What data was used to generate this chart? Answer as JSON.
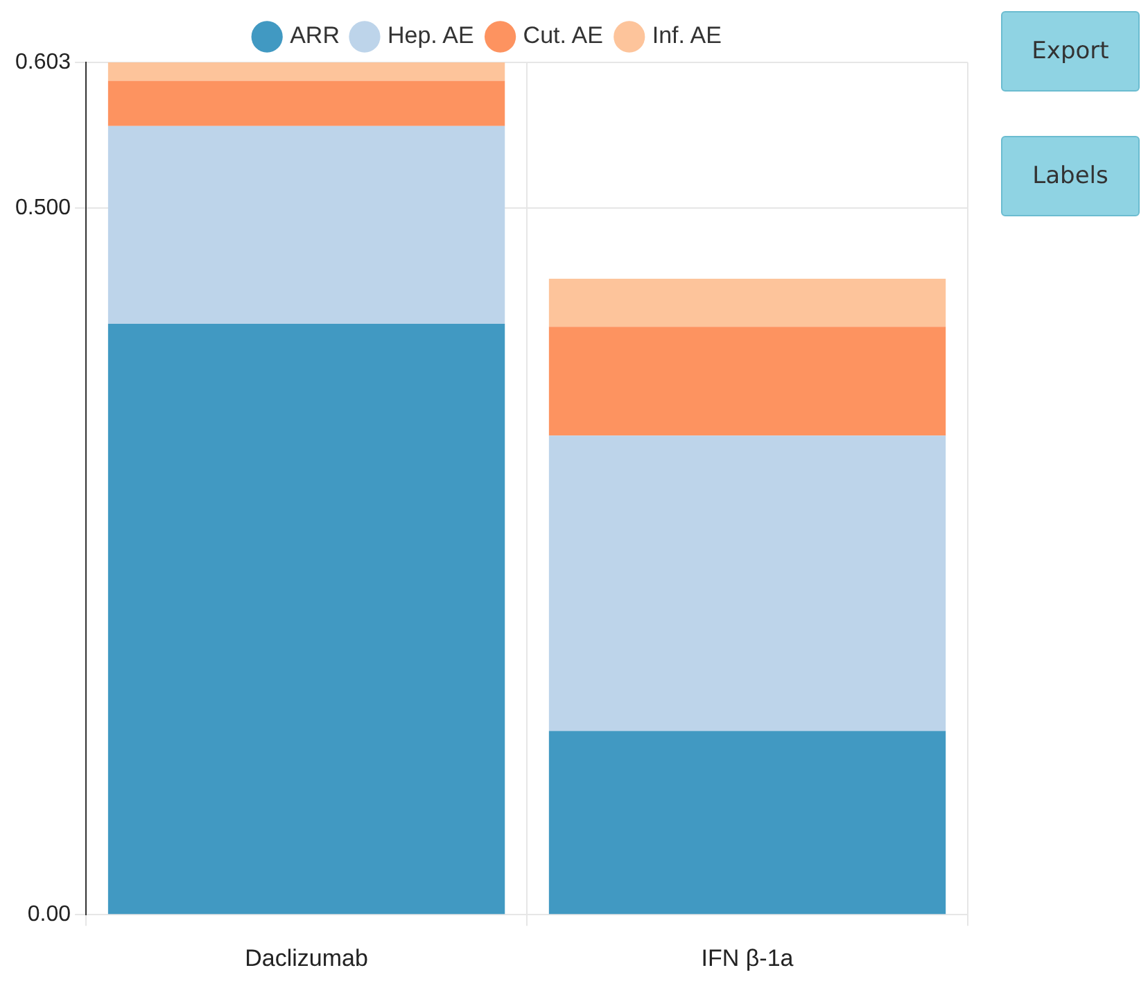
{
  "chart_data": {
    "type": "bar",
    "stacked": true,
    "categories": [
      "Daclizumab",
      "IFN β-1a"
    ],
    "series": [
      {
        "name": "ARR",
        "color": "#4199c2",
        "values": [
          0.418,
          0.13
        ]
      },
      {
        "name": "Hep. AE",
        "color": "#bdd4ea",
        "values": [
          0.14,
          0.209
        ]
      },
      {
        "name": "Cut. AE",
        "color": "#fd9360",
        "values": [
          0.032,
          0.077
        ]
      },
      {
        "name": "Inf. AE",
        "color": "#fdc49b",
        "values": [
          0.013,
          0.034
        ]
      }
    ],
    "ylim": [
      0,
      0.603
    ],
    "yticks": [
      {
        "value": 0,
        "label": "0.00"
      },
      {
        "value": 0.5,
        "label": "0.500"
      },
      {
        "value": 0.603,
        "label": "0.603"
      }
    ],
    "grid": true,
    "legend": "top",
    "annotations": [
      "Export",
      "Labels"
    ]
  }
}
